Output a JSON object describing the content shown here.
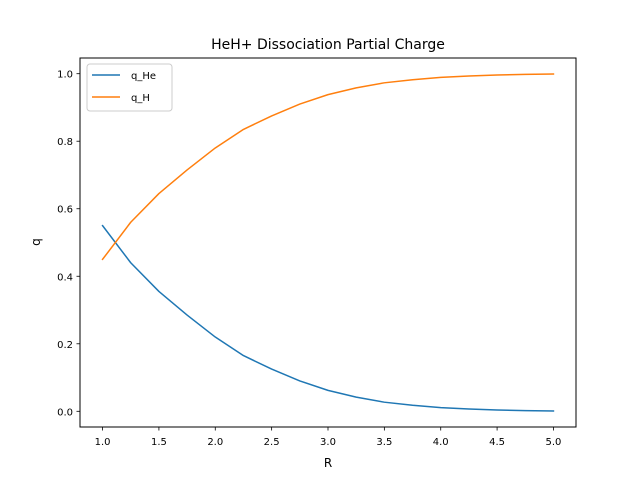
{
  "chart_data": {
    "type": "line",
    "title": "HeH+ Dissociation Partial Charge",
    "xlabel": "R",
    "ylabel": "q",
    "xlim": [
      0.8,
      5.2
    ],
    "ylim": [
      -0.0465,
      1.0465
    ],
    "xticks": [
      1.0,
      1.5,
      2.0,
      2.5,
      3.0,
      3.5,
      4.0,
      4.5,
      5.0
    ],
    "xtick_labels": [
      "1.0",
      "1.5",
      "2.0",
      "2.5",
      "3.0",
      "3.5",
      "4.0",
      "4.5",
      "5.0"
    ],
    "yticks": [
      0.0,
      0.2,
      0.4,
      0.6,
      0.8,
      1.0
    ],
    "ytick_labels": [
      "0.0",
      "0.2",
      "0.4",
      "0.6",
      "0.8",
      "1.0"
    ],
    "grid": false,
    "legend_position": "upper-left",
    "x": [
      1.0,
      1.25,
      1.5,
      1.75,
      2.0,
      2.25,
      2.5,
      2.75,
      3.0,
      3.25,
      3.5,
      3.75,
      4.0,
      4.25,
      4.5,
      4.75,
      5.0
    ],
    "series": [
      {
        "name": "q_He",
        "color": "#1f77b4",
        "values": [
          0.55,
          0.44,
          0.355,
          0.285,
          0.22,
          0.165,
          0.125,
          0.09,
          0.062,
          0.042,
          0.027,
          0.018,
          0.011,
          0.007,
          0.004,
          0.002,
          0.001
        ]
      },
      {
        "name": "q_H",
        "color": "#ff7f0e",
        "values": [
          0.45,
          0.56,
          0.645,
          0.715,
          0.78,
          0.835,
          0.875,
          0.91,
          0.938,
          0.958,
          0.973,
          0.982,
          0.989,
          0.993,
          0.996,
          0.998,
          0.999
        ]
      }
    ]
  }
}
